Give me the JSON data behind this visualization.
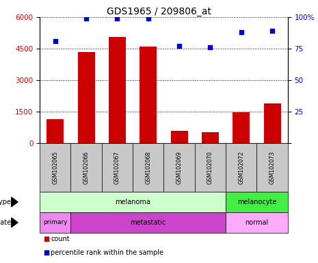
{
  "title": "GDS1965 / 209806_at",
  "samples": [
    "GSM102065",
    "GSM102066",
    "GSM102067",
    "GSM102068",
    "GSM102069",
    "GSM102070",
    "GSM102072",
    "GSM102073"
  ],
  "counts": [
    1150,
    4350,
    5050,
    4600,
    580,
    520,
    1480,
    1900
  ],
  "percentile_ranks": [
    81,
    99,
    99,
    99,
    77,
    76,
    88,
    89
  ],
  "ylim_left": [
    0,
    6000
  ],
  "ylim_right": [
    0,
    100
  ],
  "yticks_left": [
    0,
    1500,
    3000,
    4500,
    6000
  ],
  "yticks_right": [
    0,
    25,
    50,
    75,
    100
  ],
  "bar_color": "#cc0000",
  "dot_color": "#0000cc",
  "cell_type_groups": [
    {
      "label": "melanoma",
      "start": 0,
      "end": 6,
      "color": "#ccffcc"
    },
    {
      "label": "melanocyte",
      "start": 6,
      "end": 8,
      "color": "#44ee44"
    }
  ],
  "disease_state_groups": [
    {
      "label": "primary",
      "start": 0,
      "end": 1,
      "color": "#ee88ee"
    },
    {
      "label": "metastatic",
      "start": 1,
      "end": 6,
      "color": "#cc44cc"
    },
    {
      "label": "normal",
      "start": 6,
      "end": 8,
      "color": "#ffaaff"
    }
  ],
  "tick_label_color_left": "#cc0000",
  "tick_label_color_right": "#0000cc",
  "background_color": "#ffffff",
  "grid_color": "#000000",
  "sample_bg_color": "#c8c8c8"
}
